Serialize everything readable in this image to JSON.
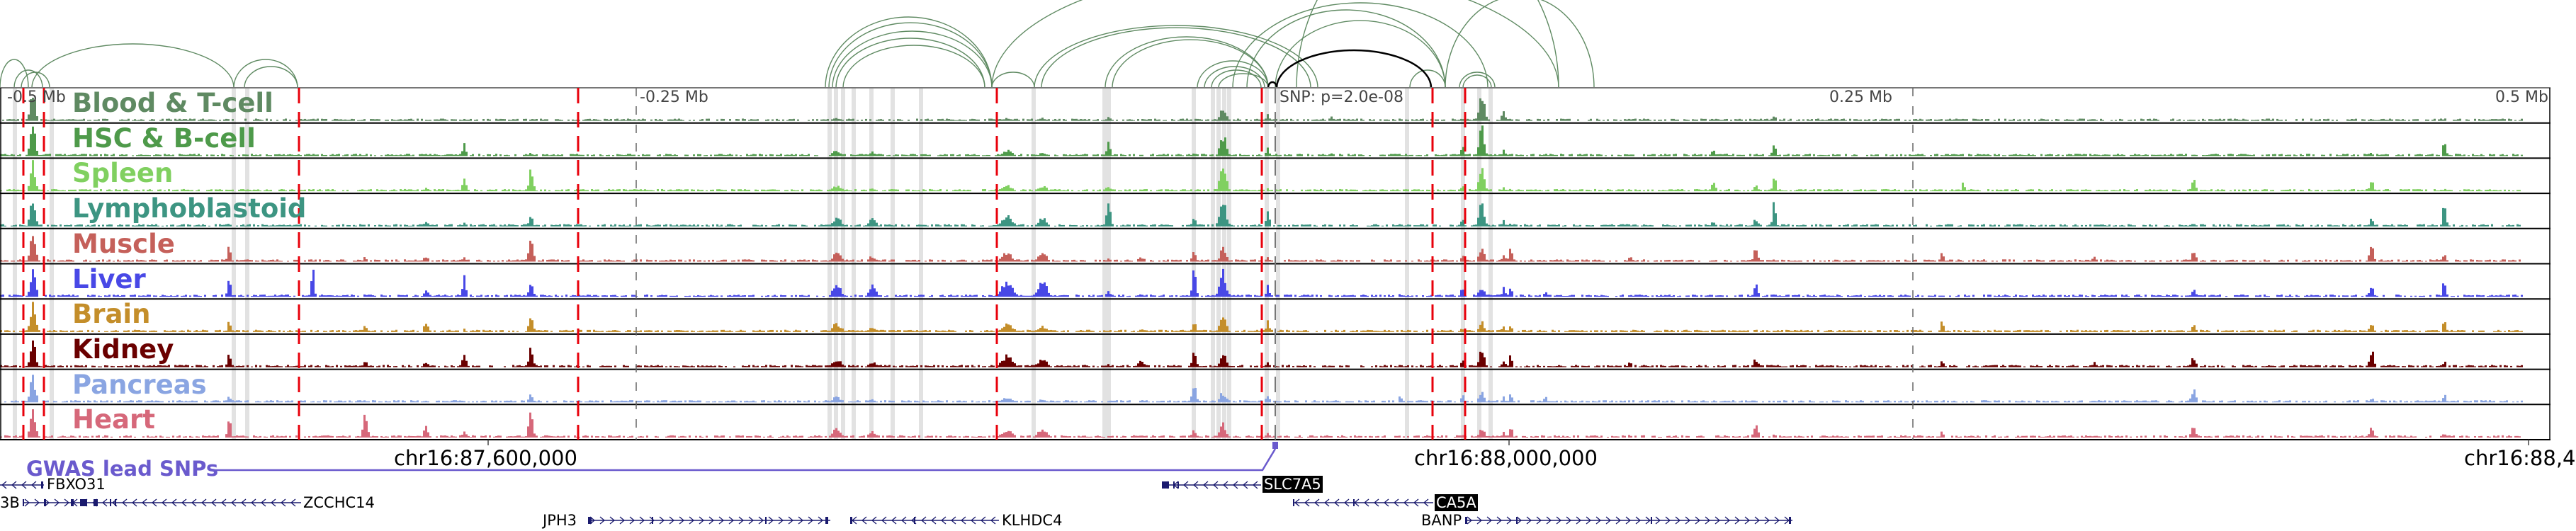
{
  "tracks": [
    {
      "label": "Blood & T-cell",
      "color": "#5f8a62"
    },
    {
      "label": "HSC & B-cell",
      "color": "#4e9a4a"
    },
    {
      "label": "Spleen",
      "color": "#80d060"
    },
    {
      "label": "Lymphoblastoid",
      "color": "#3d9582"
    },
    {
      "label": "Muscle",
      "color": "#c5605a"
    },
    {
      "label": "Liver",
      "color": "#4848e6"
    },
    {
      "label": "Brain",
      "color": "#c48e2a"
    },
    {
      "label": "Kidney",
      "color": "#6a0000"
    },
    {
      "label": "Pancreas",
      "color": "#8aa5e2"
    },
    {
      "label": "Heart",
      "color": "#d6687a"
    }
  ],
  "scale": {
    "m05": "-0.5 Mb",
    "m025": "-0.25 Mb",
    "p025": "0.25 Mb",
    "p05": "0.5 Mb"
  },
  "snp_label": "SNP: p=2.0e-08",
  "coords": {
    "c1": "chr16:87,600,000",
    "c2": "chr16:88,000,000",
    "c3": "chr16:88,4"
  },
  "gwas_label": "GWAS lead SNPs",
  "genes": {
    "fbxo31": "FBXO31",
    "frag3b": "3B",
    "zcchc14": "ZCCHC14",
    "jph3": "JPH3",
    "klhdc4": "KLHDC4",
    "slc7a5": "SLC7A5",
    "ca5a": "CA5A",
    "banp": "BANP"
  },
  "colors": {
    "gwas": "#6a5acd",
    "loop": "#5f8a62",
    "lead_loop": "#000000",
    "red_line": "#e8000b",
    "gene": "#1a1a6e"
  }
}
